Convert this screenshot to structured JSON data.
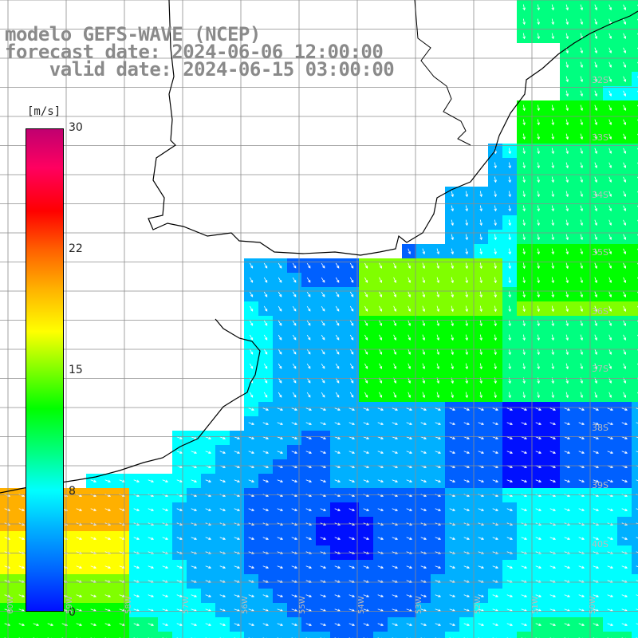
{
  "title": {
    "line1": "modelo GEFS-WAVE (NCEP)",
    "line2": "forecast date: 2024-06-06 12:00:00",
    "line3": "    valid date: 2024-06-15 03:00:00"
  },
  "colorbar": {
    "unit": "[m/s]",
    "ticks": [
      "30",
      "22",
      "15",
      "8",
      "0"
    ],
    "range": [
      0,
      30
    ],
    "colors": [
      "#0010ff",
      "#0060ff",
      "#00b0ff",
      "#00ffff",
      "#00ff80",
      "#00ff00",
      "#80ff00",
      "#ffff00",
      "#ffb000",
      "#ff6000",
      "#ff0000",
      "#ff0060",
      "#c00070"
    ]
  },
  "lat_labels": [
    "32S",
    "33S",
    "34S",
    "35S",
    "36S",
    "37S",
    "38S",
    "39S",
    "40S"
  ],
  "lon_labels": [
    "60W",
    "59W",
    "58W",
    "57W",
    "56W",
    "55W",
    "54W",
    "53W",
    "52W",
    "51W",
    "50W"
  ],
  "colors": {
    "land": "#ffffff",
    "grid": "#8c8c8c",
    "coast": "#000000",
    "arrow": "#ffffff",
    "title": "#8a8a8a"
  }
}
